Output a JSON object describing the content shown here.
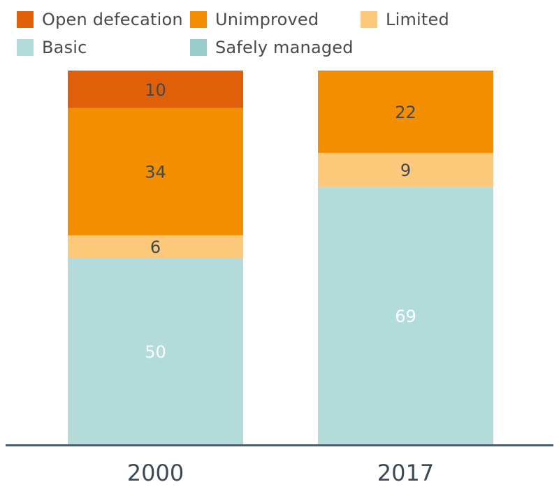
{
  "chart_data": {
    "type": "bar",
    "stacked": true,
    "categories": [
      "2000",
      "2017"
    ],
    "series": [
      {
        "name": "Open defecation",
        "color": "#e0600a",
        "values": [
          10,
          0
        ]
      },
      {
        "name": "Unimproved",
        "color": "#f28e00",
        "values": [
          34,
          22
        ]
      },
      {
        "name": "Limited",
        "color": "#fcc87a",
        "values": [
          6,
          9
        ]
      },
      {
        "name": "Basic",
        "color": "#b3dbd9",
        "values": [
          50,
          69
        ]
      },
      {
        "name": "Safely managed",
        "color": "#98cdca",
        "values": [
          0,
          0
        ]
      }
    ],
    "ylim": [
      0,
      100
    ],
    "legend_position": "top",
    "grid": false
  }
}
